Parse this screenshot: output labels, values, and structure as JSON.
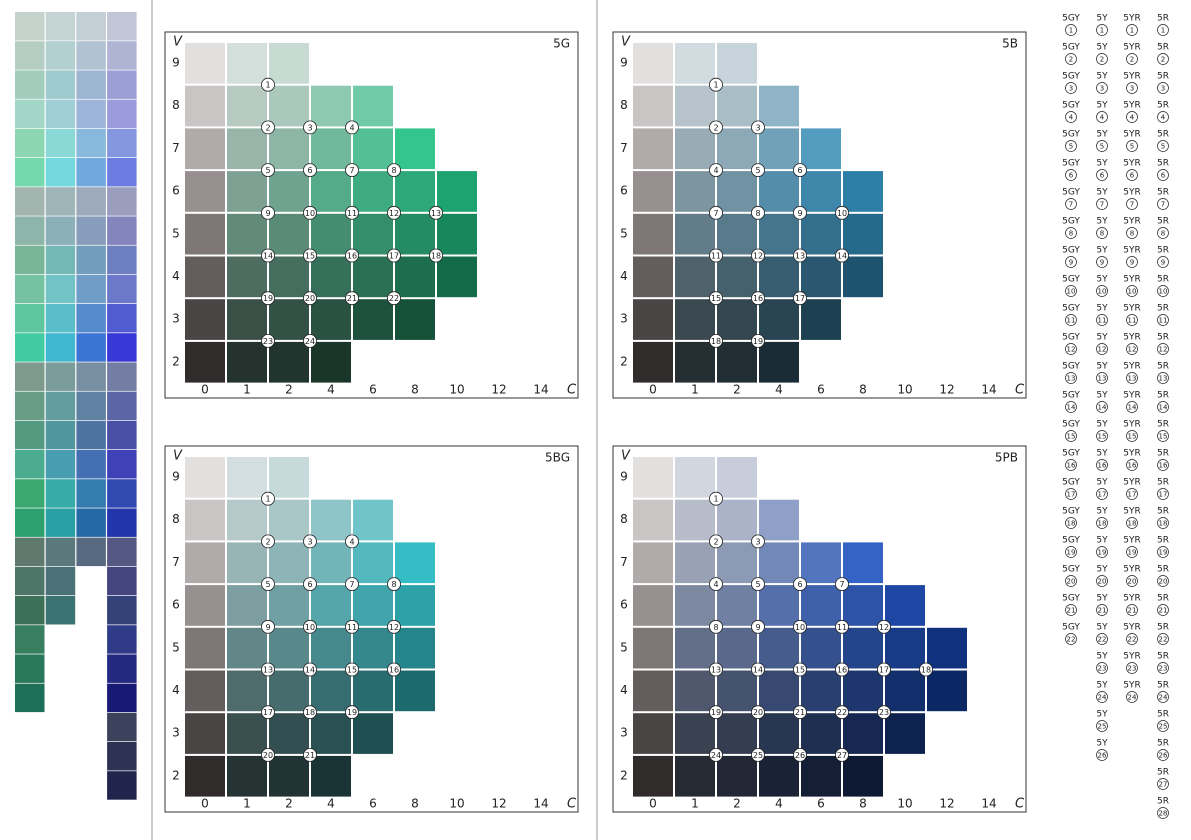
{
  "panels": [
    {
      "title": "5G",
      "color": "#1fa06e",
      "v_label": "V",
      "c_label": "C",
      "xticks": [
        0,
        1,
        2,
        4,
        6,
        8,
        10,
        12,
        14
      ],
      "rows": [
        {
          "value": 9,
          "max_chroma": 2
        },
        {
          "value": 8,
          "max_chroma": 6
        },
        {
          "value": 7,
          "max_chroma": 8
        },
        {
          "value": 6,
          "max_chroma": 10
        },
        {
          "value": 5,
          "max_chroma": 10
        },
        {
          "value": 4,
          "max_chroma": 10
        },
        {
          "value": 3,
          "max_chroma": 8
        },
        {
          "value": 2,
          "max_chroma": 4
        }
      ],
      "markers": [
        1,
        2,
        3,
        4,
        5,
        6,
        7,
        8,
        9,
        10,
        11,
        12,
        13,
        14,
        15,
        16,
        17,
        18,
        19,
        20,
        21,
        22,
        23,
        24
      ]
    },
    {
      "title": "5B",
      "color": "#2f8fc0",
      "v_label": "V",
      "c_label": "C",
      "xticks": [
        0,
        1,
        2,
        4,
        6,
        8,
        10,
        12,
        14
      ],
      "rows": [
        {
          "value": 9,
          "max_chroma": 2
        },
        {
          "value": 8,
          "max_chroma": 4
        },
        {
          "value": 7,
          "max_chroma": 6
        },
        {
          "value": 6,
          "max_chroma": 8
        },
        {
          "value": 5,
          "max_chroma": 8
        },
        {
          "value": 4,
          "max_chroma": 8
        },
        {
          "value": 3,
          "max_chroma": 6
        },
        {
          "value": 2,
          "max_chroma": 4
        }
      ],
      "markers": [
        1,
        2,
        3,
        4,
        5,
        6,
        7,
        8,
        9,
        10,
        11,
        12,
        13,
        14,
        15,
        16,
        17,
        18,
        19
      ]
    },
    {
      "title": "5BG",
      "color": "#1ba0a8",
      "v_label": "V",
      "c_label": "C",
      "xticks": [
        0,
        1,
        2,
        4,
        6,
        8,
        10,
        12,
        14
      ],
      "rows": [
        {
          "value": 9,
          "max_chroma": 2
        },
        {
          "value": 8,
          "max_chroma": 6
        },
        {
          "value": 7,
          "max_chroma": 8
        },
        {
          "value": 6,
          "max_chroma": 8
        },
        {
          "value": 5,
          "max_chroma": 8
        },
        {
          "value": 4,
          "max_chroma": 8
        },
        {
          "value": 3,
          "max_chroma": 6
        },
        {
          "value": 2,
          "max_chroma": 4
        }
      ],
      "markers": [
        1,
        2,
        3,
        4,
        5,
        6,
        7,
        8,
        9,
        10,
        11,
        12,
        13,
        14,
        15,
        16,
        17,
        18,
        19,
        20,
        21
      ]
    },
    {
      "title": "5PB",
      "color": "#3a5fb0",
      "v_label": "V",
      "c_label": "C",
      "xticks": [
        0,
        1,
        2,
        4,
        6,
        8,
        10,
        12,
        14
      ],
      "rows": [
        {
          "value": 9,
          "max_chroma": 2
        },
        {
          "value": 8,
          "max_chroma": 4
        },
        {
          "value": 7,
          "max_chroma": 8
        },
        {
          "value": 6,
          "max_chroma": 10
        },
        {
          "value": 5,
          "max_chroma": 12
        },
        {
          "value": 4,
          "max_chroma": 12
        },
        {
          "value": 3,
          "max_chroma": 10
        },
        {
          "value": 2,
          "max_chroma": 8
        }
      ],
      "markers": [
        1,
        2,
        3,
        4,
        5,
        6,
        7,
        8,
        9,
        10,
        11,
        12,
        13,
        14,
        15,
        16,
        17,
        18,
        19,
        20,
        21,
        22,
        23,
        24,
        25,
        26,
        27
      ]
    }
  ],
  "legend": [
    {
      "hue": "5GY",
      "numbers": [
        1,
        2,
        3,
        4,
        5,
        6,
        7,
        8,
        9,
        10,
        11,
        12,
        13,
        14,
        15,
        16,
        17,
        18,
        19,
        20,
        21,
        22
      ]
    },
    {
      "hue": "5Y",
      "numbers": [
        1,
        2,
        3,
        4,
        5,
        6,
        7,
        8,
        9,
        10,
        11,
        12,
        13,
        14,
        15,
        16,
        17,
        18,
        19,
        20,
        21,
        22,
        23,
        24,
        25,
        26
      ]
    },
    {
      "hue": "5YR",
      "numbers": [
        1,
        2,
        3,
        4,
        5,
        6,
        7,
        8,
        9,
        10,
        11,
        12,
        13,
        14,
        15,
        16,
        17,
        18,
        19,
        20,
        21,
        22,
        23,
        24
      ]
    },
    {
      "hue": "5R",
      "numbers": [
        1,
        2,
        3,
        4,
        5,
        6,
        7,
        8,
        9,
        10,
        11,
        12,
        13,
        14,
        15,
        16,
        17,
        18,
        19,
        20,
        21,
        22,
        23,
        24,
        25,
        26,
        27,
        28
      ]
    }
  ]
}
